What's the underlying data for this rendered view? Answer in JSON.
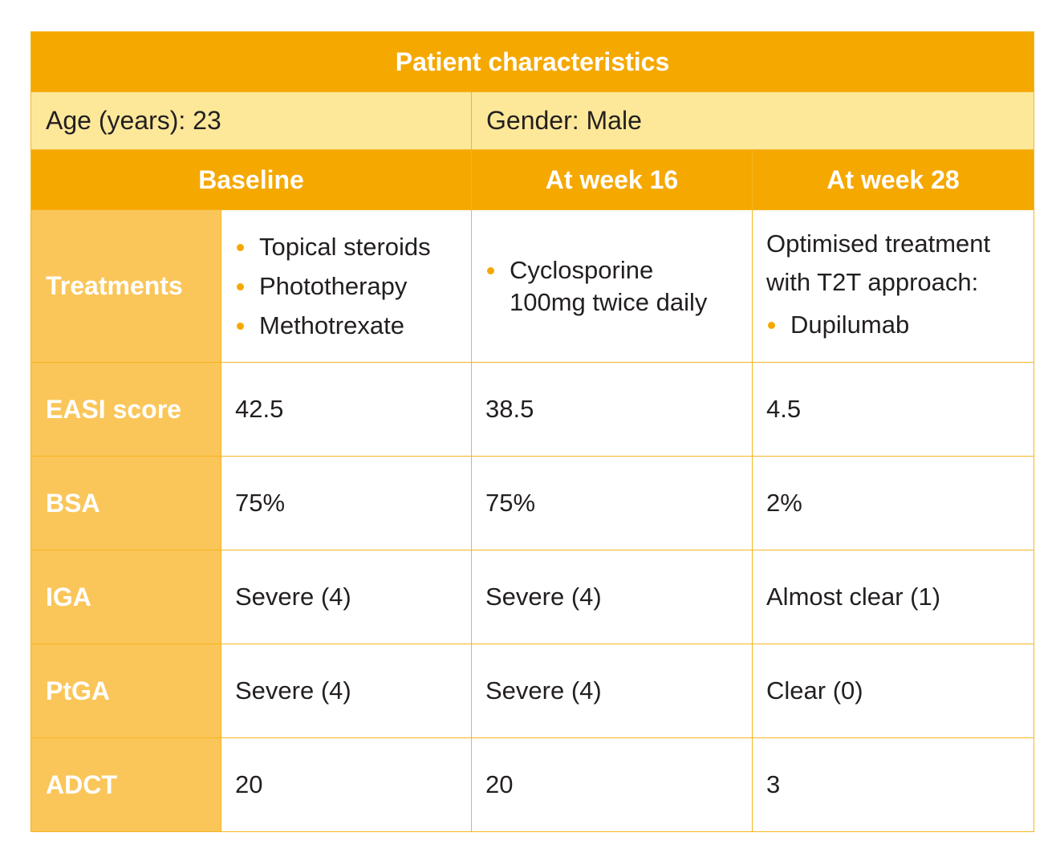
{
  "table": {
    "title": "Patient characteristics",
    "age": "Age (years): 23",
    "gender": "Gender: Male",
    "headers": [
      "Baseline",
      "At week 16",
      "At week 28"
    ],
    "treatments": {
      "label": "Treatments",
      "baseline": [
        "Topical steroids",
        "Phototherapy",
        "Methotrexate"
      ],
      "week16": [
        "Cyclosporine 100mg twice daily"
      ],
      "week28_intro_1": "Optimised treatment",
      "week28_intro_2": "with T2T approach:",
      "week28": [
        "Dupilumab"
      ]
    },
    "rows": [
      {
        "label": "EASI score",
        "baseline": "42.5",
        "week16": "38.5",
        "week28": "4.5"
      },
      {
        "label": "BSA",
        "baseline": "75%",
        "week16": "75%",
        "week28": "2%"
      },
      {
        "label": "IGA",
        "baseline": "Severe (4)",
        "week16": "Severe (4)",
        "week28": "Almost clear (1)"
      },
      {
        "label": "PtGA",
        "baseline": "Severe (4)",
        "week16": "Severe (4)",
        "week28": "Clear (0)"
      },
      {
        "label": "ADCT",
        "baseline": "20",
        "week16": "20",
        "week28": "3"
      }
    ],
    "colors": {
      "header": "#f5a800",
      "info": "#fde89a",
      "label": "#fac65a",
      "border": "#f5b521"
    }
  }
}
